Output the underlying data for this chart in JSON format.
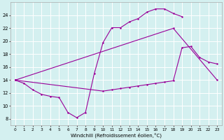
{
  "line1_x": [
    0,
    1,
    2,
    3,
    4,
    5,
    6,
    7,
    8,
    9,
    10,
    11,
    12,
    13,
    14,
    15,
    16,
    17,
    18,
    19
  ],
  "line1_y": [
    14.0,
    13.5,
    12.5,
    11.8,
    11.5,
    11.3,
    9.0,
    8.2,
    9.0,
    15.0,
    19.8,
    22.1,
    22.1,
    23.0,
    23.5,
    24.5,
    25.0,
    25.0,
    24.3,
    23.8
  ],
  "line2_x": [
    0,
    18,
    23
  ],
  "line2_y": [
    14.0,
    22.0,
    14.0
  ],
  "line3_x": [
    0,
    10,
    11,
    12,
    13,
    14,
    15,
    16,
    17,
    18,
    19,
    20,
    21,
    22,
    23
  ],
  "line3_y": [
    14.0,
    12.3,
    12.5,
    12.7,
    12.9,
    13.1,
    13.3,
    13.5,
    13.7,
    13.9,
    19.0,
    19.2,
    17.5,
    16.8,
    16.5
  ],
  "ylim": [
    7,
    26
  ],
  "xlim": [
    -0.5,
    23.5
  ],
  "yticks": [
    8,
    10,
    12,
    14,
    16,
    18,
    20,
    22,
    24
  ],
  "xticks": [
    0,
    1,
    2,
    3,
    4,
    5,
    6,
    7,
    8,
    9,
    10,
    11,
    12,
    13,
    14,
    15,
    16,
    17,
    18,
    19,
    20,
    21,
    22,
    23
  ],
  "xlabel": "Windchill (Refroidissement éolien,°C)",
  "line_color": "#990099",
  "bg_color": "#d4f0f0",
  "grid_color": "#ffffff",
  "tick_color": "#555555"
}
